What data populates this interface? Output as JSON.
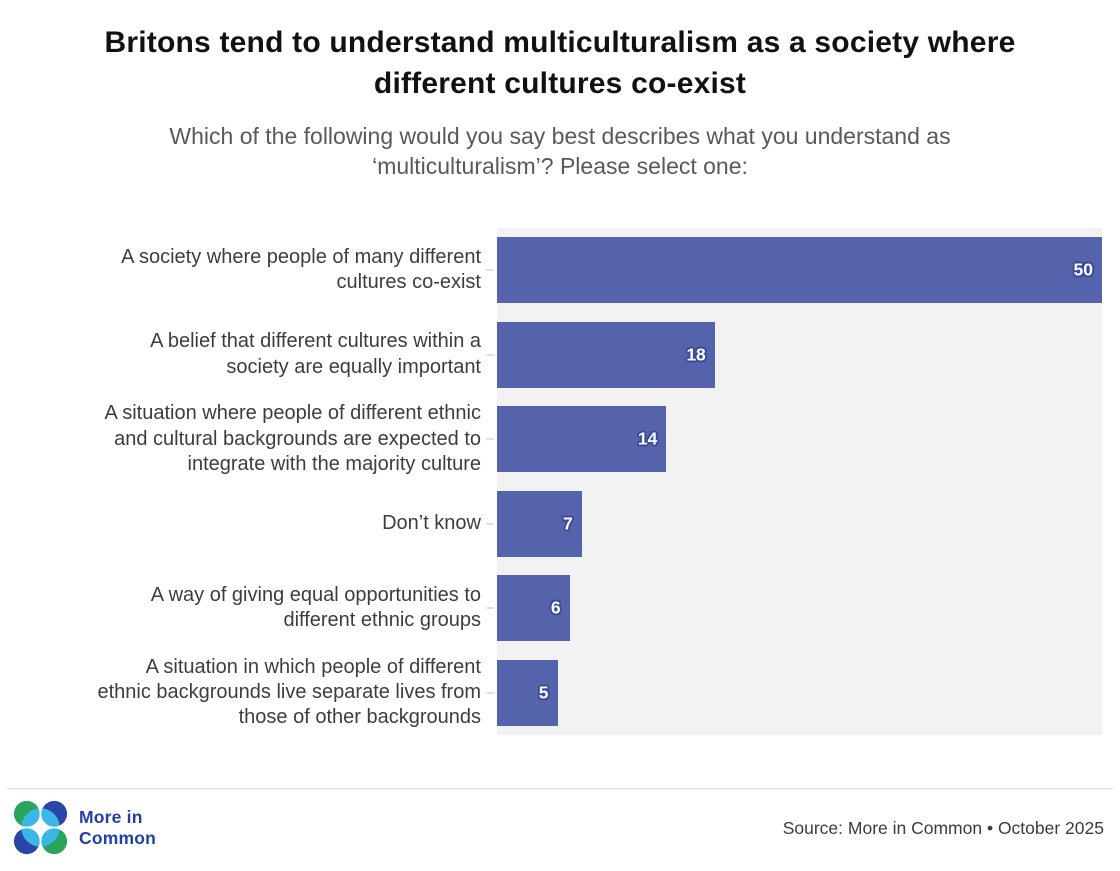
{
  "title": "Britons tend to understand multiculturalism as a society where\ndifferent cultures co-exist",
  "subtitle": "Which of the following would you say best describes what you understand as\n‘multiculturalism’? Please select one:",
  "chart_data": {
    "type": "bar",
    "orientation": "horizontal",
    "categories": [
      "A society where people of many different\ncultures co-exist",
      "A belief that different cultures within a\nsociety are equally important",
      "A situation where people of different ethnic\nand cultural backgrounds are expected to\nintegrate with the majority culture",
      "Don’t know",
      "A way of giving equal opportunities to\ndifferent ethnic groups",
      "A situation in which people of different\nethnic backgrounds live separate lives from\nthose of other backgrounds"
    ],
    "values": [
      50,
      18,
      14,
      7,
      6,
      5
    ],
    "xlim": [
      0,
      50
    ],
    "value_labels": "inside-end",
    "grid": false,
    "legend": false,
    "bar_color": "#5463ab",
    "value_label_color": "#ffffff",
    "value_label_outline": "#3b4a97",
    "plot_background": "#f2f2f2"
  },
  "footer": {
    "logo_text": "More in\nCommon",
    "source": "Source: More in Common • October 2025"
  },
  "colors": {
    "title": "#111111",
    "subtitle": "#595959",
    "category_label": "#3d3d3d",
    "logo_green": "#2aa35b",
    "logo_blue": "#2946a6",
    "logo_cyan": "#3ab7e5",
    "logo_text_blue": "#24409f"
  }
}
